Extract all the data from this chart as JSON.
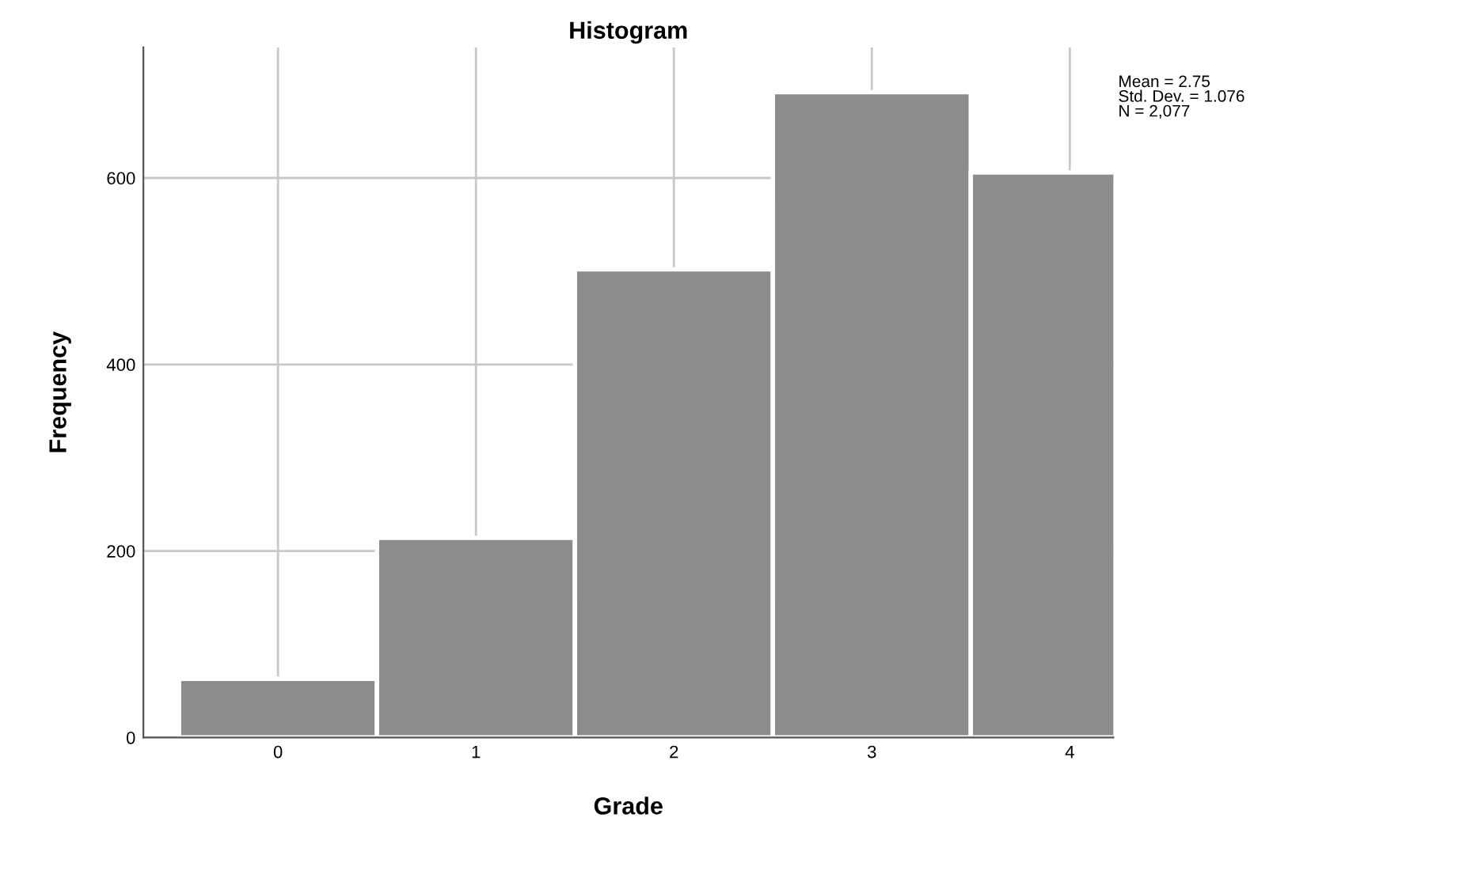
{
  "chart_data": {
    "type": "histogram",
    "title": "Histogram",
    "xlabel": "Grade",
    "ylabel": "Frequency",
    "bins": [
      -0.5,
      0.5,
      1.5,
      2.5,
      3.5,
      4.5
    ],
    "values": [
      63,
      214,
      502,
      692,
      606
    ],
    "color": "#8c8c8c",
    "xlim": [
      -0.68,
      4.22
    ],
    "xticks": [
      0,
      1,
      2,
      3,
      4
    ],
    "ylim": [
      0,
      740
    ],
    "yticks": [
      0,
      200,
      400,
      600
    ],
    "grid": true,
    "annotations": [
      "Mean = 2.75\nStd. Dev. = 1.076\nN = 2,077"
    ]
  }
}
